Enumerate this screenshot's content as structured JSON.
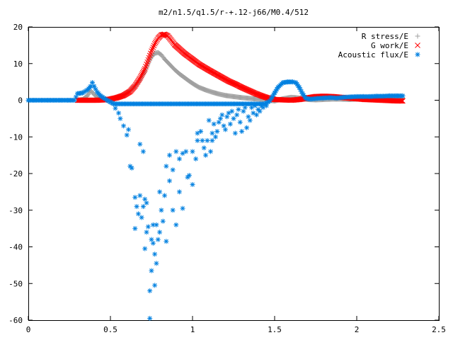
{
  "chart_data": {
    "type": "scatter",
    "title": "m2/n1.5/q1.5/r-+.12-j66/M0.4/512",
    "xlabel": "",
    "ylabel": "",
    "xlim": [
      0,
      2.5
    ],
    "ylim": [
      -60,
      20
    ],
    "xticks": [
      "0",
      "0.5",
      "1",
      "1.5",
      "2",
      "2.5"
    ],
    "yticks": [
      "-60",
      "-50",
      "-40",
      "-30",
      "-20",
      "-10",
      "0",
      "10",
      "20"
    ],
    "xtick_values": [
      0,
      0.5,
      1,
      1.5,
      2,
      2.5
    ],
    "ytick_values": [
      -60,
      -50,
      -40,
      -30,
      -20,
      -10,
      0,
      10,
      20
    ],
    "grid": false,
    "legend_position": "top-right",
    "series": [
      {
        "name": "R stress/E",
        "marker": "plus",
        "color": "#a0a0a0",
        "points": [
          [
            0.3,
            0.0
          ],
          [
            0.33,
            0.2
          ],
          [
            0.36,
            1.2
          ],
          [
            0.38,
            2.6
          ],
          [
            0.4,
            1.6
          ],
          [
            0.43,
            0.4
          ],
          [
            0.46,
            0.2
          ],
          [
            0.5,
            0.3
          ],
          [
            0.53,
            0.6
          ],
          [
            0.56,
            1.0
          ],
          [
            0.59,
            1.6
          ],
          [
            0.62,
            2.6
          ],
          [
            0.65,
            3.8
          ],
          [
            0.68,
            5.6
          ],
          [
            0.71,
            7.8
          ],
          [
            0.73,
            10.0
          ],
          [
            0.75,
            11.8
          ],
          [
            0.77,
            12.8
          ],
          [
            0.79,
            13.0
          ],
          [
            0.81,
            12.4
          ],
          [
            0.83,
            11.2
          ],
          [
            0.86,
            9.8
          ],
          [
            0.89,
            8.4
          ],
          [
            0.92,
            7.2
          ],
          [
            0.95,
            6.2
          ],
          [
            0.98,
            5.2
          ],
          [
            1.01,
            4.3
          ],
          [
            1.04,
            3.5
          ],
          [
            1.08,
            2.8
          ],
          [
            1.12,
            2.2
          ],
          [
            1.16,
            1.7
          ],
          [
            1.2,
            1.3
          ],
          [
            1.25,
            1.0
          ],
          [
            1.3,
            0.7
          ],
          [
            1.35,
            0.5
          ],
          [
            1.4,
            0.3
          ],
          [
            1.45,
            0.1
          ],
          [
            1.5,
            -0.2
          ],
          [
            1.55,
            0.4
          ],
          [
            1.6,
            0.8
          ],
          [
            1.65,
            0.6
          ],
          [
            1.7,
            0.2
          ],
          [
            1.75,
            0.1
          ],
          [
            1.8,
            0.2
          ],
          [
            1.85,
            0.3
          ],
          [
            1.9,
            0.3
          ],
          [
            1.95,
            0.2
          ],
          [
            2.0,
            0.3
          ],
          [
            2.05,
            0.4
          ],
          [
            2.1,
            0.5
          ],
          [
            2.15,
            0.5
          ],
          [
            2.2,
            0.6
          ],
          [
            2.25,
            0.6
          ],
          [
            2.28,
            0.6
          ]
        ]
      },
      {
        "name": "G work/E",
        "marker": "cross",
        "color": "#ff0000",
        "points": [
          [
            0.3,
            0.0
          ],
          [
            0.34,
            0.0
          ],
          [
            0.38,
            0.0
          ],
          [
            0.42,
            0.0
          ],
          [
            0.46,
            0.1
          ],
          [
            0.5,
            0.3
          ],
          [
            0.54,
            0.7
          ],
          [
            0.58,
            1.3
          ],
          [
            0.62,
            2.4
          ],
          [
            0.65,
            3.9
          ],
          [
            0.68,
            6.0
          ],
          [
            0.71,
            8.6
          ],
          [
            0.73,
            11.0
          ],
          [
            0.75,
            13.4
          ],
          [
            0.77,
            15.4
          ],
          [
            0.79,
            16.9
          ],
          [
            0.81,
            17.8
          ],
          [
            0.83,
            18.0
          ],
          [
            0.85,
            17.5
          ],
          [
            0.87,
            16.4
          ],
          [
            0.89,
            15.2
          ],
          [
            0.92,
            14.0
          ],
          [
            0.95,
            12.8
          ],
          [
            0.98,
            11.8
          ],
          [
            1.01,
            10.8
          ],
          [
            1.04,
            9.8
          ],
          [
            1.07,
            9.0
          ],
          [
            1.1,
            8.2
          ],
          [
            1.14,
            7.2
          ],
          [
            1.18,
            6.2
          ],
          [
            1.22,
            5.2
          ],
          [
            1.26,
            4.4
          ],
          [
            1.3,
            3.5
          ],
          [
            1.34,
            2.7
          ],
          [
            1.38,
            1.9
          ],
          [
            1.42,
            1.2
          ],
          [
            1.46,
            0.6
          ],
          [
            1.5,
            0.2
          ],
          [
            1.55,
            0.1
          ],
          [
            1.6,
            0.0
          ],
          [
            1.65,
            0.2
          ],
          [
            1.7,
            0.6
          ],
          [
            1.75,
            1.0
          ],
          [
            1.8,
            1.1
          ],
          [
            1.85,
            1.0
          ],
          [
            1.9,
            0.8
          ],
          [
            1.95,
            0.6
          ],
          [
            2.0,
            0.4
          ],
          [
            2.05,
            0.2
          ],
          [
            2.1,
            0.1
          ],
          [
            2.15,
            0.0
          ],
          [
            2.2,
            -0.1
          ],
          [
            2.25,
            -0.2
          ],
          [
            2.28,
            -0.2
          ]
        ]
      },
      {
        "name": "Acoustic flux/E",
        "marker": "star",
        "color": "#0080e0",
        "points": [
          [
            0.0,
            0.0
          ],
          [
            0.04,
            0.0
          ],
          [
            0.08,
            0.0
          ],
          [
            0.12,
            0.0
          ],
          [
            0.16,
            0.0
          ],
          [
            0.2,
            0.0
          ],
          [
            0.24,
            0.0
          ],
          [
            0.28,
            0.0
          ],
          [
            0.3,
            1.8
          ],
          [
            0.33,
            2.0
          ],
          [
            0.36,
            2.8
          ],
          [
            0.38,
            3.8
          ],
          [
            0.39,
            4.8
          ],
          [
            0.4,
            3.8
          ],
          [
            0.42,
            2.2
          ],
          [
            0.44,
            1.2
          ],
          [
            0.46,
            0.6
          ],
          [
            0.48,
            0.0
          ],
          [
            0.5,
            -0.5
          ],
          [
            0.52,
            -1.0
          ],
          [
            0.53,
            -2.2
          ],
          [
            0.55,
            -3.5
          ],
          [
            0.56,
            -5.0
          ],
          [
            0.58,
            -7.0
          ],
          [
            0.6,
            -9.5
          ],
          [
            0.61,
            -8.0
          ],
          [
            0.62,
            -18.0
          ],
          [
            0.63,
            -18.5
          ],
          [
            0.65,
            -26.5
          ],
          [
            0.65,
            -35.0
          ],
          [
            0.66,
            -29.0
          ],
          [
            0.67,
            -31.0
          ],
          [
            0.68,
            -12.0
          ],
          [
            0.68,
            -26.0
          ],
          [
            0.69,
            -32.0
          ],
          [
            0.7,
            -14.0
          ],
          [
            0.7,
            -29.0
          ],
          [
            0.71,
            -27.0
          ],
          [
            0.71,
            -40.5
          ],
          [
            0.72,
            -28.0
          ],
          [
            0.72,
            -36.0
          ],
          [
            0.73,
            -34.5
          ],
          [
            0.74,
            -52.0
          ],
          [
            0.74,
            -59.5
          ],
          [
            0.75,
            -38.0
          ],
          [
            0.75,
            -46.5
          ],
          [
            0.76,
            -34.0
          ],
          [
            0.76,
            -39.0
          ],
          [
            0.77,
            -42.0
          ],
          [
            0.77,
            -50.5
          ],
          [
            0.78,
            -34.0
          ],
          [
            0.78,
            -44.5
          ],
          [
            0.79,
            -38.0
          ],
          [
            0.8,
            -25.0
          ],
          [
            0.8,
            -36.0
          ],
          [
            0.81,
            -30.0
          ],
          [
            0.82,
            -33.0
          ],
          [
            0.83,
            -26.0
          ],
          [
            0.84,
            -38.5
          ],
          [
            0.84,
            -18.0
          ],
          [
            0.86,
            -15.0
          ],
          [
            0.86,
            -22.0
          ],
          [
            0.88,
            -19.0
          ],
          [
            0.88,
            -30.0
          ],
          [
            0.9,
            -14.0
          ],
          [
            0.9,
            -34.0
          ],
          [
            0.92,
            -16.0
          ],
          [
            0.92,
            -25.0
          ],
          [
            0.94,
            -14.5
          ],
          [
            0.94,
            -29.5
          ],
          [
            0.96,
            -14.0
          ],
          [
            0.97,
            -21.0
          ],
          [
            0.98,
            -20.5
          ],
          [
            1.0,
            -23.0
          ],
          [
            1.0,
            -14.0
          ],
          [
            1.02,
            -16.0
          ],
          [
            1.03,
            -11.0
          ],
          [
            1.03,
            -9.0
          ],
          [
            1.05,
            -8.5
          ],
          [
            1.06,
            -11.0
          ],
          [
            1.07,
            -13.0
          ],
          [
            1.08,
            -15.0
          ],
          [
            1.09,
            -11.0
          ],
          [
            1.1,
            -5.5
          ],
          [
            1.11,
            -14.0
          ],
          [
            1.12,
            -9.0
          ],
          [
            1.12,
            -11.0
          ],
          [
            1.13,
            -6.5
          ],
          [
            1.14,
            -10.0
          ],
          [
            1.15,
            -8.5
          ],
          [
            1.16,
            -6.0
          ],
          [
            1.17,
            -5.0
          ],
          [
            1.18,
            -4.0
          ],
          [
            1.19,
            -7.0
          ],
          [
            1.2,
            -8.0
          ],
          [
            1.21,
            -4.5
          ],
          [
            1.22,
            -3.5
          ],
          [
            1.23,
            -6.5
          ],
          [
            1.24,
            -3.0
          ],
          [
            1.25,
            -5.0
          ],
          [
            1.26,
            -9.0
          ],
          [
            1.27,
            -4.0
          ],
          [
            1.28,
            -2.5
          ],
          [
            1.29,
            -6.0
          ],
          [
            1.3,
            -8.5
          ],
          [
            1.31,
            -3.0
          ],
          [
            1.32,
            -2.0
          ],
          [
            1.33,
            -7.5
          ],
          [
            1.34,
            -4.5
          ],
          [
            1.35,
            -5.5
          ],
          [
            1.36,
            -2.0
          ],
          [
            1.37,
            -3.5
          ],
          [
            1.38,
            -1.5
          ],
          [
            1.39,
            -4.0
          ],
          [
            1.4,
            -2.5
          ],
          [
            1.41,
            -3.0
          ],
          [
            1.42,
            -1.5
          ],
          [
            1.43,
            -2.0
          ],
          [
            1.44,
            -1.0
          ],
          [
            1.45,
            -1.5
          ],
          [
            1.46,
            -0.5
          ],
          [
            1.47,
            -0.2
          ],
          [
            1.48,
            0.5
          ],
          [
            1.5,
            2.0
          ],
          [
            1.52,
            3.5
          ],
          [
            1.55,
            4.8
          ],
          [
            1.58,
            5.0
          ],
          [
            1.61,
            5.0
          ],
          [
            1.63,
            4.8
          ],
          [
            1.65,
            3.5
          ],
          [
            1.67,
            1.8
          ],
          [
            1.69,
            0.5
          ],
          [
            1.72,
            0.3
          ],
          [
            1.76,
            0.5
          ],
          [
            1.8,
            0.6
          ],
          [
            1.84,
            0.7
          ],
          [
            1.88,
            0.6
          ],
          [
            1.92,
            0.8
          ],
          [
            1.96,
            0.9
          ],
          [
            2.0,
            1.0
          ],
          [
            2.04,
            1.0
          ],
          [
            2.08,
            1.0
          ],
          [
            2.12,
            1.1
          ],
          [
            2.16,
            1.1
          ],
          [
            2.2,
            1.2
          ],
          [
            2.24,
            1.2
          ],
          [
            2.28,
            1.2
          ]
        ]
      }
    ]
  }
}
